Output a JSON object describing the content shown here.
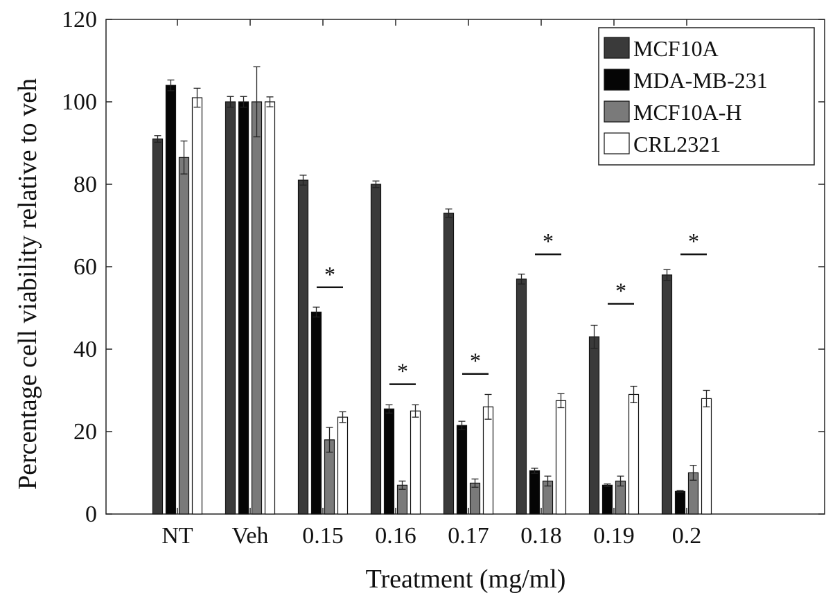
{
  "chart_data": {
    "type": "bar",
    "xlabel": "Treatment (mg/ml)",
    "ylabel": "Percentage cell viability relative to veh",
    "ylim": [
      0,
      120
    ],
    "yticks": [
      0,
      20,
      40,
      60,
      80,
      100,
      120
    ],
    "categories": [
      "NT",
      "Veh",
      "0.15",
      "0.16",
      "0.17",
      "0.18",
      "0.19",
      "0.2"
    ],
    "legend_position": "top-right",
    "grid": false,
    "series": [
      {
        "name": "MCF10A",
        "color": "#3a3a3a",
        "values": [
          91,
          100,
          81,
          80,
          73,
          57,
          43,
          58
        ],
        "errors": [
          0.8,
          1.3,
          1.2,
          0.8,
          1.0,
          1.2,
          2.8,
          1.3
        ]
      },
      {
        "name": "MDA-MB-231",
        "color": "#050505",
        "values": [
          104,
          100,
          49,
          25.5,
          21.5,
          10.5,
          7,
          5.5
        ],
        "errors": [
          1.3,
          1.3,
          1.2,
          1.0,
          1.0,
          0.6,
          0.3,
          0.2
        ]
      },
      {
        "name": "MCF10A-H",
        "color": "#7a7a7a",
        "values": [
          86.5,
          100,
          18,
          7,
          7.5,
          8,
          8,
          10
        ],
        "errors": [
          4.0,
          8.5,
          3.0,
          1.0,
          1.0,
          1.2,
          1.2,
          1.8
        ]
      },
      {
        "name": "CRL2321",
        "color": "#ffffff",
        "values": [
          101,
          100,
          23.5,
          25,
          26,
          27.5,
          29,
          28
        ],
        "errors": [
          2.3,
          1.2,
          1.3,
          1.5,
          3.0,
          1.7,
          2.0,
          2.0
        ]
      }
    ],
    "annotations": [
      {
        "label": "*",
        "category": "0.15",
        "y": 55
      },
      {
        "label": "*",
        "category": "0.16",
        "y": 31.5
      },
      {
        "label": "*",
        "category": "0.17",
        "y": 34
      },
      {
        "label": "*",
        "category": "0.18",
        "y": 63
      },
      {
        "label": "*",
        "category": "0.19",
        "y": 51
      },
      {
        "label": "*",
        "category": "0.2",
        "y": 63
      }
    ]
  }
}
